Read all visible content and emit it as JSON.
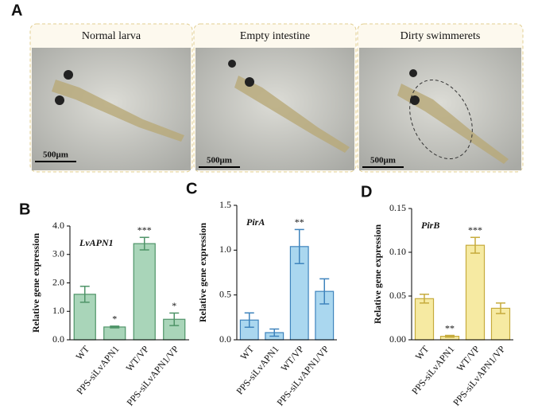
{
  "panel_a": {
    "letter": "A",
    "panels": [
      {
        "title": "Normal larva",
        "scale_bar": "500μm"
      },
      {
        "title": "Empty intestine",
        "scale_bar": "500μm"
      },
      {
        "title": "Dirty swimmerets",
        "scale_bar": "500μm"
      }
    ]
  },
  "chart_data": [
    {
      "type": "bar",
      "panel": "B",
      "title": "LvAPN1",
      "y_label": "Relative gene expression",
      "categories": [
        "WT",
        "PPS-siLvAPN1",
        "WT/VP",
        "PPS-siLvAPN1/VP"
      ],
      "values": [
        1.6,
        0.45,
        3.38,
        0.72
      ],
      "errors": [
        0.28,
        0.03,
        0.22,
        0.22
      ],
      "significance": [
        null,
        "*",
        "***",
        "*"
      ],
      "color": "#a9d5b9",
      "edge_color": "#4f9468",
      "ylim": [
        0,
        4
      ],
      "yticks": [
        {
          "value": 0,
          "label": "0.0"
        },
        {
          "value": 1,
          "label": "1.0"
        },
        {
          "value": 2,
          "label": "2.0"
        },
        {
          "value": 3,
          "label": "3.0"
        },
        {
          "value": 4,
          "label": "4.0"
        }
      ]
    },
    {
      "type": "bar",
      "panel": "C",
      "title": "PirA",
      "y_label": "Relative gene expression",
      "categories": [
        "WT",
        "PPS-siLvAPN1",
        "WT/VP",
        "PPS-siLvAPN1/VP"
      ],
      "values": [
        0.22,
        0.08,
        1.04,
        0.54
      ],
      "errors": [
        0.08,
        0.04,
        0.19,
        0.14
      ],
      "significance": [
        null,
        null,
        "**",
        null
      ],
      "color": "#aad7ef",
      "edge_color": "#3f84bd",
      "ylim": [
        0,
        1.5
      ],
      "yticks": [
        {
          "value": 0,
          "label": "0.0"
        },
        0.5,
        {
          "value": 1,
          "label": "1.0"
        },
        1.5
      ]
    },
    {
      "type": "bar",
      "panel": "D",
      "title": "PirB",
      "y_label": "Relative gene expression",
      "categories": [
        "WT",
        "PPS-siLvAPN1",
        "WT/VP",
        "PPS-siLvAPN1/VP"
      ],
      "values": [
        0.047,
        0.004,
        0.108,
        0.036
      ],
      "errors": [
        0.005,
        0.001,
        0.009,
        0.006
      ],
      "significance": [
        null,
        "**",
        "***",
        null
      ],
      "color": "#f6eaa2",
      "edge_color": "#c6ab3c",
      "ylim": [
        0,
        0.15
      ],
      "yticks": [
        {
          "value": 0,
          "label": "0.00"
        },
        0.05,
        {
          "value": 0.1,
          "label": "0.10"
        },
        0.15
      ]
    }
  ]
}
